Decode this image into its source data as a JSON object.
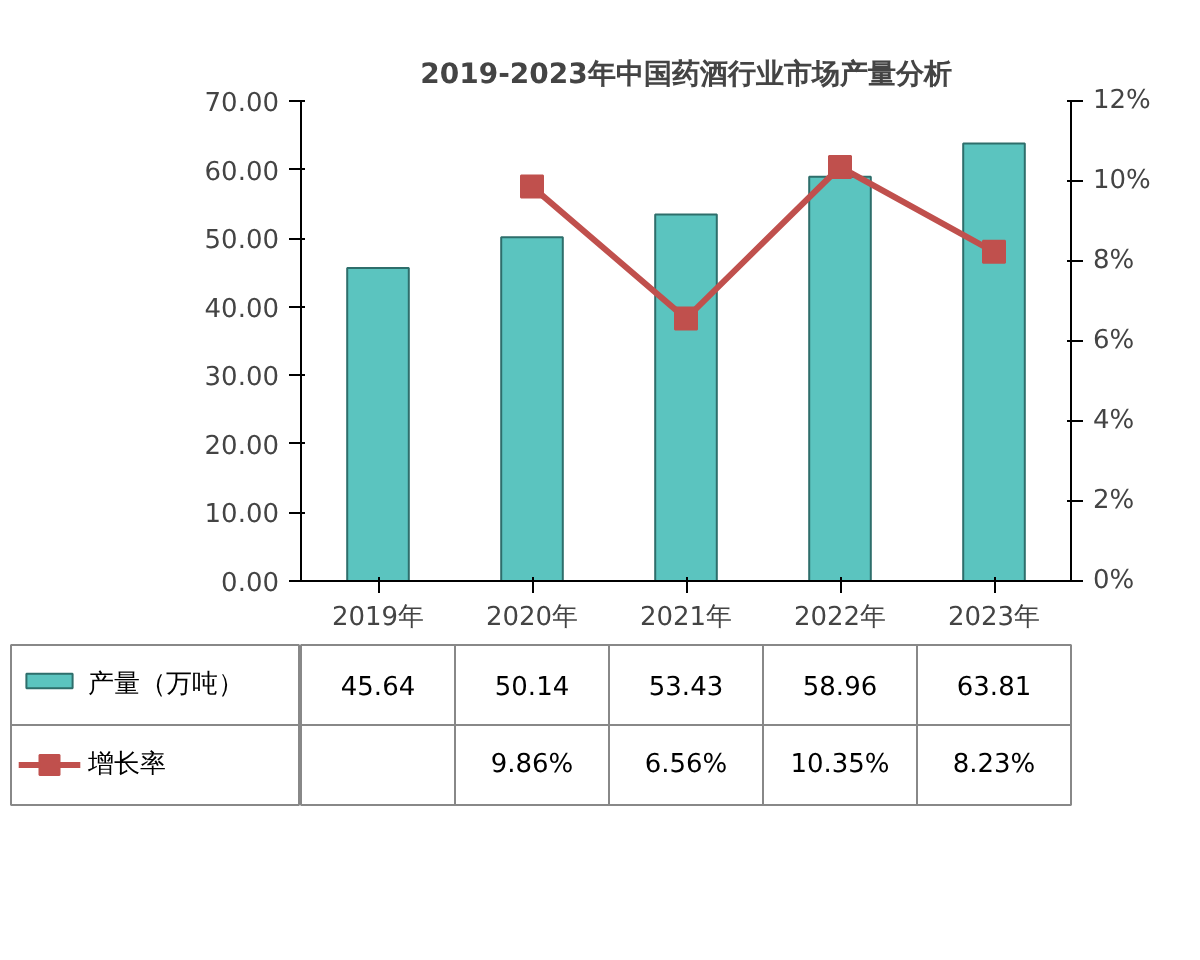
{
  "chart_data": {
    "type": "bar",
    "title": "2019-2023年中国药酒行业市场产量分析",
    "categories": [
      "2019年",
      "2020年",
      "2021年",
      "2022年",
      "2023年"
    ],
    "series": [
      {
        "name": "产量（万吨）",
        "color": "#5bc4bf",
        "values": [
          45.64,
          50.14,
          53.43,
          58.96,
          63.81
        ],
        "value_labels": [
          "45.64",
          "50.14",
          "53.43",
          "58.96",
          "63.81"
        ]
      },
      {
        "name": "增长率",
        "type": "line",
        "axis": "y2",
        "marker": "square",
        "color": "#c0504d",
        "values": [
          null,
          9.86,
          6.56,
          10.35,
          8.23
        ],
        "value_labels": [
          null,
          "9.86%",
          "6.56%",
          "10.35%",
          "8.23%"
        ]
      }
    ],
    "ylim": [
      0,
      70
    ],
    "yticks": [
      {
        "value": 0,
        "label": "0.00"
      },
      {
        "value": 10,
        "label": "10.00"
      },
      {
        "value": 20,
        "label": "20.00"
      },
      {
        "value": 30,
        "label": "30.00"
      },
      {
        "value": 40,
        "label": "40.00"
      },
      {
        "value": 50,
        "label": "50.00"
      },
      {
        "value": 60,
        "label": "60.00"
      },
      {
        "value": 70,
        "label": "70.00"
      }
    ],
    "y2lim": [
      0,
      12
    ],
    "y2ticks": [
      {
        "value": 0,
        "label": "0%"
      },
      {
        "value": 2,
        "label": "2%"
      },
      {
        "value": 4,
        "label": "4%"
      },
      {
        "value": 6,
        "label": "6%"
      },
      {
        "value": 8,
        "label": "8%"
      },
      {
        "value": 10,
        "label": "10%"
      },
      {
        "value": 12,
        "label": "12%"
      }
    ],
    "grid": false,
    "legend": "bottom"
  }
}
